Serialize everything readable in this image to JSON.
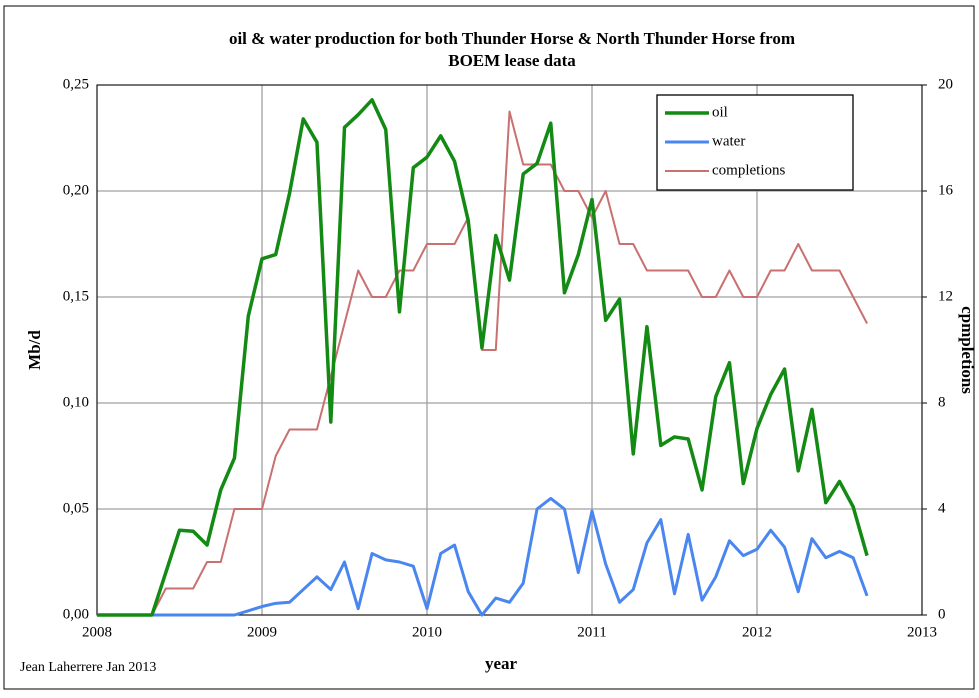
{
  "chart_data": {
    "type": "line",
    "title": "oil & water production for both Thunder Horse & North Thunder Horse from BOEM lease data",
    "xlabel": "year",
    "ylabel": "Mb/d",
    "y2label": "cpmpletions",
    "annotation": "Jean Laherrere Jan 2013",
    "x": [
      2008,
      2008.083,
      2008.167,
      2008.25,
      2008.333,
      2008.417,
      2008.5,
      2008.583,
      2008.667,
      2008.75,
      2008.833,
      2008.917,
      2009,
      2009.083,
      2009.167,
      2009.25,
      2009.333,
      2009.417,
      2009.5,
      2009.583,
      2009.667,
      2009.75,
      2009.833,
      2009.917,
      2010,
      2010.083,
      2010.167,
      2010.25,
      2010.333,
      2010.417,
      2010.5,
      2010.583,
      2010.667,
      2010.75,
      2010.833,
      2010.917,
      2011,
      2011.083,
      2011.167,
      2011.25,
      2011.333,
      2011.417,
      2011.5,
      2011.583,
      2011.667,
      2011.75,
      2011.833,
      2011.917,
      2012,
      2012.083,
      2012.167,
      2012.25,
      2012.333,
      2012.417,
      2012.5,
      2012.583,
      2012.667
    ],
    "series": [
      {
        "name": "oil",
        "color": "#138a13",
        "width": 3.5,
        "values": [
          0,
          0,
          0,
          0,
          0,
          0.02,
          0.04,
          0.0395,
          0.033,
          0.059,
          0.074,
          0.141,
          0.168,
          0.17,
          0.199,
          0.234,
          0.223,
          0.091,
          0.23,
          0.236,
          0.243,
          0.229,
          0.143,
          0.211,
          0.216,
          0.226,
          0.214,
          0.186,
          0.126,
          0.179,
          0.158,
          0.208,
          0.213,
          0.232,
          0.152,
          0.17,
          0.196,
          0.139,
          0.149,
          0.076,
          0.136,
          0.08,
          0.084,
          0.083,
          0.059,
          0.103,
          0.119,
          0.062,
          0.088,
          0.104,
          0.116,
          0.068,
          0.097,
          0.053,
          0.063,
          0.051,
          0.028
        ]
      },
      {
        "name": "water",
        "color": "#4a86f0",
        "width": 3,
        "values": [
          0,
          0,
          0,
          0,
          0,
          0,
          0,
          0,
          0,
          0,
          0,
          0.002,
          0.004,
          0.0055,
          0.006,
          0.012,
          0.018,
          0.012,
          0.025,
          0.003,
          0.029,
          0.026,
          0.025,
          0.023,
          0.003,
          0.029,
          0.033,
          0.011,
          0,
          0.008,
          0.006,
          0.015,
          0.05,
          0.055,
          0.05,
          0.02,
          0.049,
          0.024,
          0.006,
          0.012,
          0.034,
          0.045,
          0.01,
          0.038,
          0.007,
          0.018,
          0.035,
          0.028,
          0.031,
          0.04,
          0.032,
          0.011,
          0.036,
          0.027,
          0.03,
          0.027,
          0.009
        ]
      },
      {
        "name": "completions",
        "color": "#c97070",
        "width": 2,
        "axis": "y2",
        "values": [
          0,
          0,
          0,
          0,
          0,
          1,
          1,
          1,
          2,
          2,
          4,
          4,
          4,
          6,
          7,
          7,
          7,
          9,
          11,
          13,
          12,
          12,
          13,
          13,
          14,
          14,
          14,
          15,
          10,
          10,
          19,
          17,
          17,
          17,
          16,
          16,
          15,
          16,
          14,
          14,
          13,
          13,
          13,
          13,
          12,
          12,
          13,
          12,
          12,
          13,
          13,
          14,
          13,
          13,
          13,
          12,
          11
        ]
      }
    ],
    "xlim": [
      2008,
      2013
    ],
    "xticks": [
      2008,
      2009,
      2010,
      2011,
      2012,
      2013
    ],
    "ylim": [
      0,
      0.25
    ],
    "yticks": [
      {
        "value": 0,
        "label": "0,00"
      },
      {
        "value": 0.05,
        "label": "0,05"
      },
      {
        "value": 0.1,
        "label": "0,10"
      },
      {
        "value": 0.15,
        "label": "0,15"
      },
      {
        "value": 0.2,
        "label": "0,20"
      },
      {
        "value": 0.25,
        "label": "0,25"
      }
    ],
    "y2lim": [
      0,
      20
    ],
    "y2ticks": [
      0,
      4,
      8,
      12,
      16,
      20
    ],
    "grid": true,
    "legend": "upper right"
  }
}
